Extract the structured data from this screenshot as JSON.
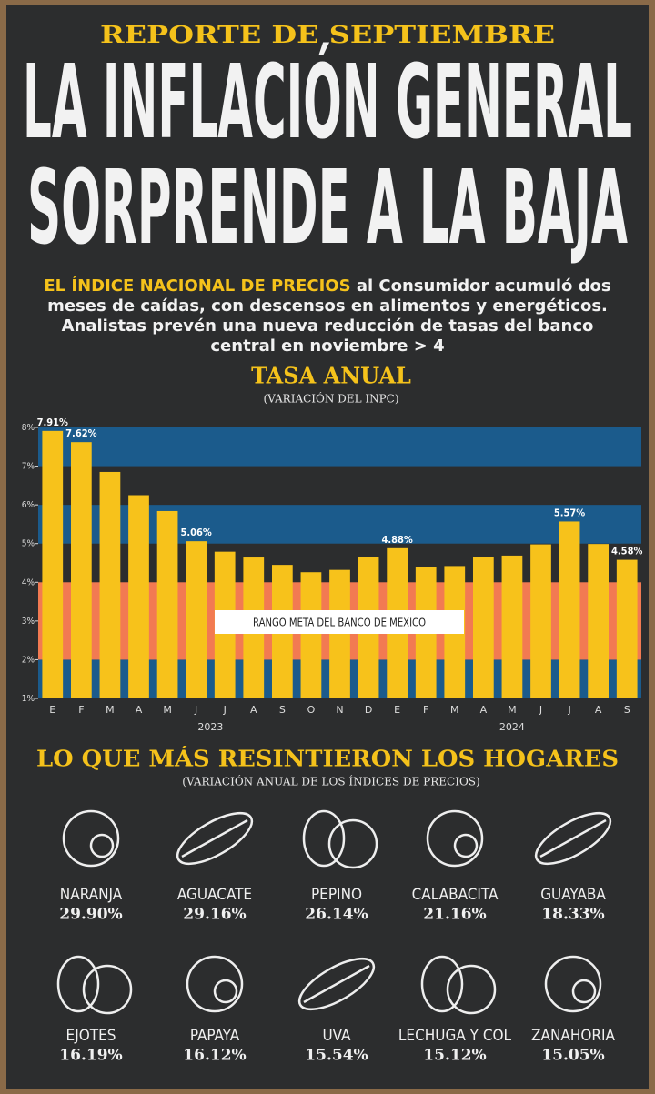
{
  "header": {
    "kicker": "REPORTE DE SEPTIEMBRE",
    "title_lines": [
      "LA INFLACIÓN GENERAL",
      "SORPRENDE A LA BAJA"
    ]
  },
  "intro": {
    "highlight": "EL ÍNDICE NACIONAL DE PRECIOS",
    "text": "al Consumidor acumuló dos meses de caídas, con descensos en alimentos y energéticos. Analistas prevén una nueva reducción de tasas del banco central en noviembre > 4"
  },
  "chart_data": {
    "type": "bar",
    "title": "TASA ANUAL",
    "subtitle": "(VARIACIÓN DEL INPC)",
    "category_groups": [
      {
        "label": "2023",
        "categories": [
          "E",
          "F",
          "M",
          "A",
          "M",
          "J",
          "J",
          "A",
          "S",
          "O",
          "N",
          "D"
        ]
      },
      {
        "label": "2024",
        "categories": [
          "E",
          "F",
          "M",
          "A",
          "M",
          "J",
          "J",
          "A",
          "S"
        ]
      }
    ],
    "values": [
      7.91,
      7.62,
      6.85,
      6.25,
      5.84,
      5.06,
      4.79,
      4.64,
      4.45,
      4.26,
      4.32,
      4.66,
      4.88,
      4.4,
      4.42,
      4.65,
      4.69,
      4.98,
      5.57,
      4.99,
      4.58
    ],
    "value_labels": [
      "7.91%",
      "7.62%",
      null,
      null,
      null,
      "5.06%",
      null,
      null,
      null,
      null,
      null,
      null,
      "4.88%",
      null,
      null,
      null,
      null,
      null,
      "5.57%",
      null,
      "4.58%"
    ],
    "color": "#f7c21b",
    "ylim": [
      1,
      8
    ],
    "yticks": [
      {
        "value": 1,
        "label": "1%"
      },
      {
        "value": 2,
        "label": "2%"
      },
      {
        "value": 3,
        "label": "3%"
      },
      {
        "value": 4,
        "label": "4%"
      },
      {
        "value": 5,
        "label": "5%"
      },
      {
        "value": 6,
        "label": "6%"
      },
      {
        "value": 7,
        "label": "7%"
      },
      {
        "value": 8,
        "label": "8%"
      }
    ],
    "stripes": [
      [
        7,
        8
      ],
      [
        5,
        6
      ],
      [
        1,
        2
      ]
    ],
    "stripe_color": "#1b5b8c",
    "band": {
      "label": "RANGO META DEL BANCO DE MEXICO",
      "range": [
        2,
        4
      ],
      "color": "#f27a52"
    }
  },
  "section": {
    "title": "LO QUE MÁS RESINTIERON LOS HOGARES",
    "subtitle": "(VARIACIÓN ANUAL DE LOS ÍNDICES DE PRECIOS)"
  },
  "products": [
    {
      "name": "NARANJA",
      "change": "29.90%"
    },
    {
      "name": "AGUACATE",
      "change": "29.16%"
    },
    {
      "name": "PEPINO",
      "change": "26.14%"
    },
    {
      "name": "CALABACITA",
      "change": "21.16%"
    },
    {
      "name": "GUAYABA",
      "change": "18.33%"
    },
    {
      "name": "EJOTES",
      "change": "16.19%"
    },
    {
      "name": "PAPAYA",
      "change": "16.12%"
    },
    {
      "name": "UVA",
      "change": "15.54%"
    },
    {
      "name": "LECHUGA Y COL",
      "change": "15.12%"
    },
    {
      "name": "ZANAHORIA",
      "change": "15.05%"
    }
  ]
}
